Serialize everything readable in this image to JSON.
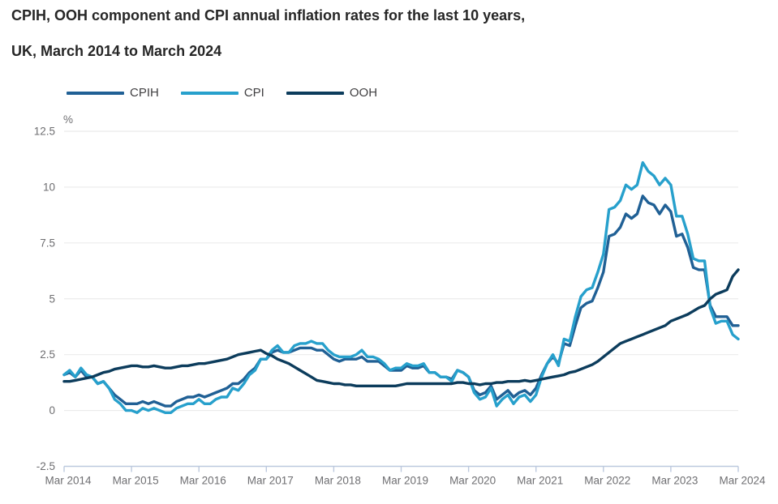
{
  "header": {
    "title_line1": "CPIH, OOH component and CPI annual inflation rates for the last 10 years,",
    "title_line2": "UK, March 2014 to March 2024"
  },
  "colors": {
    "title_text": "#262626",
    "legend_text": "#414042",
    "tick_label_text": "#6e6e71",
    "gridline": "#ebebeb",
    "axis_line": "#bcc9de",
    "background": "#ffffff",
    "cpih_line": "#206095",
    "cpi_line": "#27A0CC",
    "ooh_line": "#0C3C5C"
  },
  "chart_data": {
    "type": "line",
    "title": "CPIH, OOH component and CPI annual inflation rates for the last 10 years, UK, March 2014 to March 2024",
    "xlabel": "",
    "ylabel": "%",
    "ylim": [
      -2.5,
      12.5
    ],
    "y_ticks": [
      12.5,
      10,
      7.5,
      5,
      2.5,
      0,
      -2.5
    ],
    "x_tick_labels": [
      "Mar 2014",
      "Mar 2015",
      "Mar 2016",
      "Mar 2017",
      "Mar 2018",
      "Mar 2019",
      "Mar 2020",
      "Mar 2021",
      "Mar 2022",
      "Mar 2023",
      "Mar 2024"
    ],
    "x_frequency": "monthly",
    "x_start": "Mar 2014",
    "x_end": "Mar 2024",
    "grid": "horizontal",
    "legend_position": "top",
    "series": [
      {
        "name": "CPIH",
        "color": "#206095",
        "values": [
          1.6,
          1.7,
          1.5,
          1.8,
          1.5,
          1.5,
          1.2,
          1.3,
          1.0,
          0.7,
          0.5,
          0.3,
          0.3,
          0.3,
          0.4,
          0.3,
          0.4,
          0.3,
          0.2,
          0.2,
          0.4,
          0.5,
          0.6,
          0.6,
          0.7,
          0.6,
          0.7,
          0.8,
          0.9,
          1.0,
          1.2,
          1.2,
          1.4,
          1.7,
          1.9,
          2.3,
          2.3,
          2.6,
          2.7,
          2.6,
          2.6,
          2.7,
          2.8,
          2.8,
          2.8,
          2.7,
          2.7,
          2.5,
          2.3,
          2.2,
          2.3,
          2.3,
          2.3,
          2.4,
          2.2,
          2.2,
          2.2,
          2.0,
          1.8,
          1.8,
          1.8,
          2.0,
          1.9,
          1.9,
          2.0,
          1.7,
          1.7,
          1.5,
          1.5,
          1.4,
          1.8,
          1.7,
          1.5,
          0.9,
          0.7,
          0.8,
          1.1,
          0.5,
          0.7,
          0.9,
          0.6,
          0.8,
          0.9,
          0.7,
          1.0,
          1.6,
          2.1,
          2.4,
          2.1,
          3.0,
          2.9,
          3.8,
          4.6,
          4.8,
          4.9,
          5.5,
          6.2,
          7.8,
          7.9,
          8.2,
          8.8,
          8.6,
          8.8,
          9.6,
          9.3,
          9.2,
          8.8,
          9.2,
          8.9,
          7.8,
          7.9,
          7.3,
          6.4,
          6.3,
          6.3,
          4.7,
          4.2,
          4.2,
          4.2,
          3.8,
          3.8
        ]
      },
      {
        "name": "CPI",
        "color": "#27A0CC",
        "values": [
          1.6,
          1.8,
          1.5,
          1.9,
          1.6,
          1.5,
          1.2,
          1.3,
          1.0,
          0.5,
          0.3,
          0.0,
          0.0,
          -0.1,
          0.1,
          0.0,
          0.1,
          0.0,
          -0.1,
          -0.1,
          0.1,
          0.2,
          0.3,
          0.3,
          0.5,
          0.3,
          0.3,
          0.5,
          0.6,
          0.6,
          1.0,
          0.9,
          1.2,
          1.6,
          1.8,
          2.3,
          2.3,
          2.7,
          2.9,
          2.6,
          2.6,
          2.9,
          3.0,
          3.0,
          3.1,
          3.0,
          3.0,
          2.7,
          2.5,
          2.4,
          2.4,
          2.4,
          2.5,
          2.7,
          2.4,
          2.4,
          2.3,
          2.1,
          1.8,
          1.9,
          1.9,
          2.1,
          2.0,
          2.0,
          2.1,
          1.7,
          1.7,
          1.5,
          1.5,
          1.3,
          1.8,
          1.7,
          1.5,
          0.8,
          0.5,
          0.6,
          1.0,
          0.2,
          0.5,
          0.7,
          0.3,
          0.6,
          0.7,
          0.4,
          0.7,
          1.5,
          2.1,
          2.5,
          2.0,
          3.2,
          3.1,
          4.2,
          5.1,
          5.4,
          5.5,
          6.2,
          7.0,
          9.0,
          9.1,
          9.4,
          10.1,
          9.9,
          10.1,
          11.1,
          10.7,
          10.5,
          10.1,
          10.4,
          10.1,
          8.7,
          8.7,
          7.9,
          6.8,
          6.7,
          6.7,
          4.6,
          3.9,
          4.0,
          4.0,
          3.4,
          3.2
        ]
      },
      {
        "name": "OOH",
        "color": "#0C3C5C",
        "values": [
          1.3,
          1.3,
          1.35,
          1.4,
          1.45,
          1.5,
          1.6,
          1.7,
          1.75,
          1.85,
          1.9,
          1.95,
          2.0,
          2.0,
          1.95,
          1.95,
          2.0,
          1.95,
          1.9,
          1.9,
          1.95,
          2.0,
          2.0,
          2.05,
          2.1,
          2.1,
          2.15,
          2.2,
          2.25,
          2.3,
          2.4,
          2.5,
          2.55,
          2.6,
          2.65,
          2.7,
          2.55,
          2.45,
          2.3,
          2.2,
          2.1,
          1.95,
          1.8,
          1.65,
          1.5,
          1.35,
          1.3,
          1.25,
          1.2,
          1.2,
          1.15,
          1.15,
          1.1,
          1.1,
          1.1,
          1.1,
          1.1,
          1.1,
          1.1,
          1.1,
          1.15,
          1.2,
          1.2,
          1.2,
          1.2,
          1.2,
          1.2,
          1.2,
          1.2,
          1.2,
          1.25,
          1.25,
          1.2,
          1.2,
          1.15,
          1.2,
          1.2,
          1.25,
          1.25,
          1.3,
          1.3,
          1.3,
          1.35,
          1.3,
          1.35,
          1.4,
          1.45,
          1.5,
          1.55,
          1.6,
          1.7,
          1.75,
          1.85,
          1.95,
          2.05,
          2.2,
          2.4,
          2.6,
          2.8,
          3.0,
          3.1,
          3.2,
          3.3,
          3.4,
          3.5,
          3.6,
          3.7,
          3.8,
          4.0,
          4.1,
          4.2,
          4.3,
          4.45,
          4.6,
          4.7,
          5.0,
          5.2,
          5.3,
          5.4,
          6.0,
          6.3
        ]
      }
    ]
  }
}
